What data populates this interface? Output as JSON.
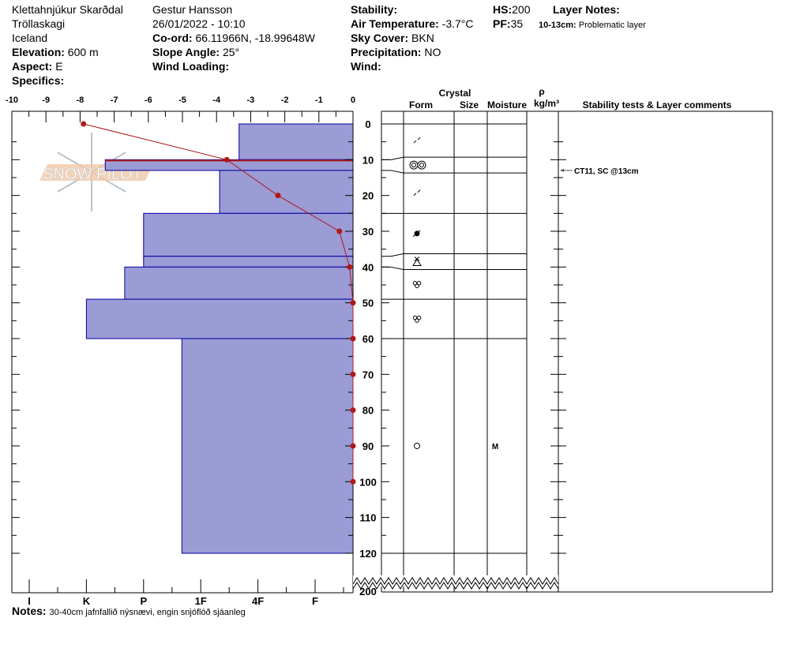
{
  "header": {
    "location": "Klettahnjúkur Skarðdal",
    "region": "Tröllaskagi",
    "country": "Iceland",
    "elevation_label": "Elevation:",
    "elevation": "600 m",
    "aspect_label": "Aspect:",
    "aspect": "E",
    "specifics_label": "Specifics:",
    "observer": "Gestur Hansson",
    "datetime": "26/01/2022 - 10:10",
    "coord_label": "Co-ord:",
    "coord": "66.11966N, -18.99648W",
    "slope_label": "Slope Angle:",
    "slope": "25°",
    "wind_loading_label": "Wind Loading:",
    "stability_label": "Stability:",
    "air_temp_label": "Air Temperature:",
    "air_temp": "-3.7°C",
    "sky_label": "Sky Cover:",
    "sky": "BKN",
    "precip_label": "Precipitation:",
    "precip": "NO",
    "wind_label": "Wind:",
    "hs_label": "HS:",
    "hs": "200",
    "pf_label": "PF:",
    "pf": "35",
    "layer_notes_label": "Layer Notes:",
    "layer_note_range": "10-13cm:",
    "layer_note_text": "Problematic layer"
  },
  "notes_label": "Notes:",
  "notes": "30-40cm jafnfallið nýsnævi, engin snjóflóð sjáanleg",
  "columns": {
    "crystal": "Crystal",
    "form": "Form",
    "size": "Size",
    "moisture": "Moisture",
    "rho": "ρ",
    "density_unit": "kg/m³",
    "comments": "Stability tests & Layer comments"
  },
  "logo_text": "SNOW PILOT",
  "colors": {
    "hardness_fill": "#9b9bd6",
    "hardness_stroke": "#0000a0",
    "temp_line": "#b01818",
    "logo_band": "#f0c8a8",
    "snowflake": "#b8c4cc"
  },
  "chart_data": {
    "type": "snow-profile",
    "temperature_axis": {
      "ticks": [
        "-10",
        "-9",
        "-8",
        "-7",
        "-6",
        "-5",
        "-4",
        "-3",
        "-2",
        "-1",
        "0"
      ],
      "range": [
        -10,
        0
      ]
    },
    "hardness_axis": {
      "ticks": [
        "I",
        "K",
        "P",
        "1F",
        "4F",
        "F"
      ]
    },
    "depth_axis": {
      "ticks": [
        "0",
        "10",
        "20",
        "30",
        "40",
        "50",
        "60",
        "70",
        "80",
        "90",
        "100",
        "110",
        "120",
        "200"
      ],
      "range": [
        0,
        200
      ],
      "break_between": [
        120,
        200
      ]
    },
    "temperature_profile": [
      {
        "depth": 0,
        "temp": -7.9
      },
      {
        "depth": 10,
        "temp": -3.7
      },
      {
        "depth": 20,
        "temp": -2.2
      },
      {
        "depth": 30,
        "temp": -0.4
      },
      {
        "depth": 40,
        "temp": -0.1
      },
      {
        "depth": 50,
        "temp": 0
      },
      {
        "depth": 60,
        "temp": 0
      },
      {
        "depth": 70,
        "temp": 0
      },
      {
        "depth": 80,
        "temp": 0
      },
      {
        "depth": 90,
        "temp": 0
      },
      {
        "depth": 100,
        "temp": 0
      }
    ],
    "layers": [
      {
        "top": 0,
        "bottom": 10,
        "hardness": "4F+",
        "form": "decomposing",
        "moisture": ""
      },
      {
        "top": 10,
        "bottom": 13,
        "hardness": "K-",
        "form": "double-circle",
        "moisture": "",
        "problematic": true
      },
      {
        "top": 13,
        "bottom": 25,
        "hardness": "1F-",
        "form": "decomposing",
        "moisture": ""
      },
      {
        "top": 25,
        "bottom": 37,
        "hardness": "P",
        "form": "rounded-faceted",
        "moisture": ""
      },
      {
        "top": 37,
        "bottom": 40,
        "hardness": "P",
        "form": "faceted-rounding",
        "moisture": ""
      },
      {
        "top": 40,
        "bottom": 49,
        "hardness": "P+",
        "form": "melt-cluster",
        "moisture": ""
      },
      {
        "top": 49,
        "bottom": 60,
        "hardness": "K",
        "form": "melt-cluster",
        "moisture": ""
      },
      {
        "top": 60,
        "bottom": 120,
        "hardness": "1F+",
        "form": "melt-freeze",
        "moisture": "M"
      }
    ],
    "stability_tests": [
      {
        "depth": 13,
        "text": "CT11, SC @13cm"
      }
    ]
  }
}
